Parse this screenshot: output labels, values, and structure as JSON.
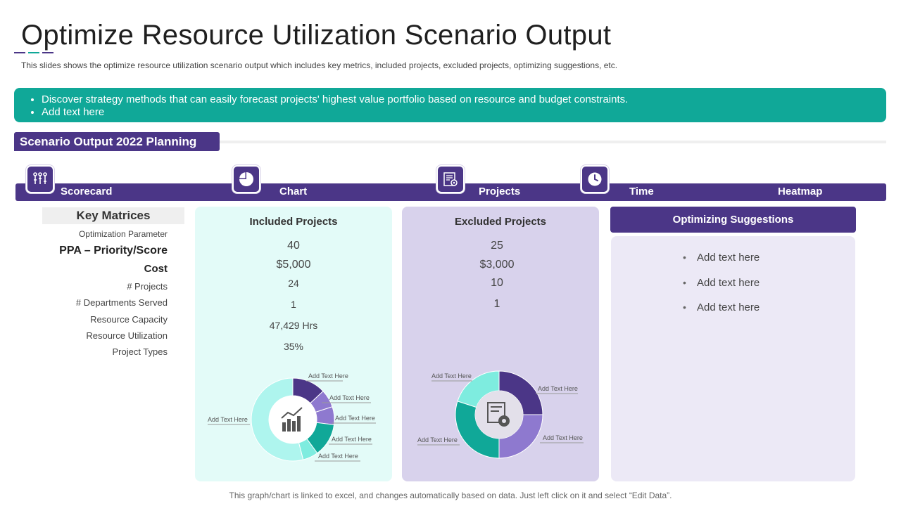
{
  "title": "Optimize Resource Utilization Scenario Output",
  "subtitle": "This slides shows the optimize resource utilization scenario output which includes key metrics, included projects, excluded projects, optimizing suggestions, etc.",
  "colors": {
    "purple": "#4b3687",
    "teal": "#10a898",
    "light_purple": "#8e79cf",
    "light_teal": "#7eecdf"
  },
  "banner": {
    "bullets": [
      "Discover strategy methods that can easily forecast projects' highest value portfolio based on resource and budget constraints.",
      "Add text here"
    ]
  },
  "planning_tab": "Scenario Output  2022 Planning",
  "nav": {
    "scorecard": "Scorecard",
    "chart": "Chart",
    "projects": "Projects",
    "time": "Time",
    "heatmap": "Heatmap",
    "icons": [
      "pins-icon",
      "pie-chart-icon",
      "project-document-icon",
      "clock-icon"
    ]
  },
  "key_matrices": {
    "heading": "Key Matrices",
    "rows": [
      "Optimization Parameter",
      "PPA – Priority/Score",
      "Cost",
      "# Projects",
      "# Departments  Served",
      "Resource Capacity",
      "Resource Utilization",
      "Project Types"
    ]
  },
  "included": {
    "title": "Included Projects",
    "values": [
      "40",
      "$5,000",
      "24",
      "1",
      "47,429 Hrs",
      "35%"
    ]
  },
  "excluded": {
    "title": "Excluded Projects",
    "values": [
      "25",
      "$3,000",
      "10",
      "1"
    ]
  },
  "optimizing": {
    "title": "Optimizing Suggestions",
    "items": [
      "Add text here",
      "Add text here",
      "Add text here"
    ]
  },
  "chart_data": [
    {
      "type": "pie",
      "title": "Included Projects",
      "labels": [
        "Add Text Here",
        "Add Text Here",
        "Add Text Here",
        "Add Text Here",
        "Add Text Here",
        "Add Text Here"
      ],
      "values": [
        13,
        7,
        7,
        13,
        6,
        54
      ],
      "colors": [
        "#4b3687",
        "#8e79cf",
        "#8e79cf",
        "#10a898",
        "#7eecdf",
        "#aef5ee"
      ]
    },
    {
      "type": "pie",
      "title": "Excluded Projects",
      "labels": [
        "Add Text Here",
        "Add Text Here",
        "Add Text Here",
        "Add Text Here"
      ],
      "values": [
        25,
        25,
        30,
        20
      ],
      "colors": [
        "#4b3687",
        "#8e79cf",
        "#10a898",
        "#7eecdf"
      ]
    }
  ],
  "footer": "This graph/chart is linked to excel,  and changes automatically based on data. Just left click on it and select “Edit Data”."
}
